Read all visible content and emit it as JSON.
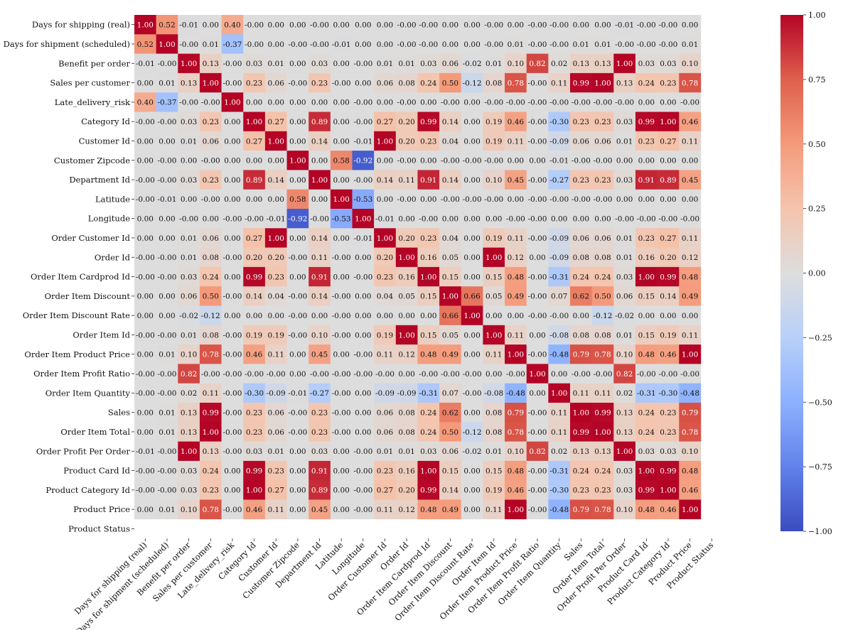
{
  "chart_data": {
    "type": "heatmap",
    "colormap": "coolwarm",
    "vmin": -1.0,
    "vmax": 1.0,
    "colorbar_ticks": [
      "1.00",
      "0.75",
      "0.50",
      "0.25",
      "0.00",
      "−0.25",
      "−0.50",
      "−0.75",
      "−1.00"
    ],
    "labels": [
      "Days for shipping (real)",
      "Days for shipment (scheduled)",
      "Benefit per order",
      "Sales per customer",
      "Late_delivery_risk",
      "Category Id",
      "Customer Id",
      "Customer Zipcode",
      "Department Id",
      "Latitude",
      "Longitude",
      "Order Customer Id",
      "Order Id",
      "Order Item Cardprod Id",
      "Order Item Discount",
      "Order Item Discount Rate",
      "Order Item Id",
      "Order Item Product Price",
      "Order Item Profit Ratio",
      "Order Item Quantity",
      "Sales",
      "Order Item Total",
      "Order Profit Per Order",
      "Product Card Id",
      "Product Category Id",
      "Product Price",
      "Product Status"
    ],
    "values": [
      [
        "1.00",
        "0.52",
        "-0.01",
        "0.00",
        "0.40",
        "-0.00",
        "0.00",
        "0.00",
        "-0.00",
        "0.00",
        "0.00",
        "0.00",
        "-0.00",
        "-0.00",
        "0.00",
        "0.00",
        "-0.00",
        "0.00",
        "-0.00",
        "-0.00",
        "0.00",
        "0.00",
        "-0.01",
        "-0.00",
        "-0.00",
        "0.00",
        null
      ],
      [
        "0.52",
        "1.00",
        "-0.00",
        "0.01",
        "-0.37",
        "-0.00",
        "0.00",
        "-0.00",
        "-0.00",
        "-0.01",
        "0.00",
        "0.00",
        "-0.00",
        "-0.00",
        "0.00",
        "0.00",
        "-0.00",
        "0.01",
        "-0.00",
        "-0.00",
        "0.01",
        "0.01",
        "-0.00",
        "-0.00",
        "-0.00",
        "0.01",
        null
      ],
      [
        "-0.01",
        "-0.00",
        "1.00",
        "0.13",
        "-0.00",
        "0.03",
        "0.01",
        "0.00",
        "0.03",
        "0.00",
        "-0.00",
        "0.01",
        "0.01",
        "0.03",
        "0.06",
        "-0.02",
        "0.01",
        "0.10",
        "0.82",
        "0.02",
        "0.13",
        "0.13",
        "1.00",
        "0.03",
        "0.03",
        "0.10",
        null
      ],
      [
        "0.00",
        "0.01",
        "0.13",
        "1.00",
        "-0.00",
        "0.23",
        "0.06",
        "-0.00",
        "0.23",
        "-0.00",
        "0.00",
        "0.06",
        "0.08",
        "0.24",
        "0.50",
        "-0.12",
        "0.08",
        "0.78",
        "-0.00",
        "0.11",
        "0.99",
        "1.00",
        "0.13",
        "0.24",
        "0.23",
        "0.78",
        null
      ],
      [
        "0.40",
        "-0.37",
        "-0.00",
        "-0.00",
        "1.00",
        "0.00",
        "0.00",
        "0.00",
        "0.00",
        "0.00",
        "-0.00",
        "0.00",
        "-0.00",
        "0.00",
        "-0.00",
        "0.00",
        "-0.00",
        "-0.00",
        "-0.00",
        "-0.00",
        "-0.00",
        "-0.00",
        "-0.00",
        "0.00",
        "0.00",
        "-0.00",
        null
      ],
      [
        "-0.00",
        "-0.00",
        "0.03",
        "0.23",
        "0.00",
        "1.00",
        "0.27",
        "0.00",
        "0.89",
        "0.00",
        "-0.00",
        "0.27",
        "0.20",
        "0.99",
        "0.14",
        "0.00",
        "0.19",
        "0.46",
        "-0.00",
        "-0.30",
        "0.23",
        "0.23",
        "0.03",
        "0.99",
        "1.00",
        "0.46",
        null
      ],
      [
        "0.00",
        "0.00",
        "0.01",
        "0.06",
        "0.00",
        "0.27",
        "1.00",
        "0.00",
        "0.14",
        "0.00",
        "-0.01",
        "1.00",
        "0.20",
        "0.23",
        "0.04",
        "0.00",
        "0.19",
        "0.11",
        "-0.00",
        "-0.09",
        "0.06",
        "0.06",
        "0.01",
        "0.23",
        "0.27",
        "0.11",
        null
      ],
      [
        "0.00",
        "-0.00",
        "0.00",
        "-0.00",
        "0.00",
        "0.00",
        "0.00",
        "1.00",
        "0.00",
        "0.58",
        "-0.92",
        "0.00",
        "-0.00",
        "0.00",
        "-0.00",
        "-0.00",
        "-0.00",
        "0.00",
        "0.00",
        "-0.01",
        "-0.00",
        "-0.00",
        "0.00",
        "0.00",
        "0.00",
        "0.00",
        null
      ],
      [
        "-0.00",
        "-0.00",
        "0.03",
        "0.23",
        "0.00",
        "0.89",
        "0.14",
        "0.00",
        "1.00",
        "0.00",
        "-0.00",
        "0.14",
        "0.11",
        "0.91",
        "0.14",
        "0.00",
        "0.10",
        "0.45",
        "-0.00",
        "-0.27",
        "0.23",
        "0.23",
        "0.03",
        "0.91",
        "0.89",
        "0.45",
        null
      ],
      [
        "-0.00",
        "-0.01",
        "0.00",
        "-0.00",
        "0.00",
        "0.00",
        "0.00",
        "0.58",
        "0.00",
        "1.00",
        "-0.53",
        "0.00",
        "-0.00",
        "0.00",
        "-0.00",
        "-0.00",
        "-0.00",
        "0.00",
        "-0.00",
        "-0.00",
        "-0.00",
        "-0.00",
        "0.00",
        "0.00",
        "0.00",
        "0.00",
        null
      ],
      [
        "0.00",
        "0.00",
        "-0.00",
        "0.00",
        "-0.00",
        "-0.00",
        "-0.01",
        "-0.92",
        "-0.00",
        "-0.53",
        "1.00",
        "-0.01",
        "0.00",
        "-0.00",
        "0.00",
        "0.00",
        "0.00",
        "-0.00",
        "-0.00",
        "0.00",
        "0.00",
        "0.00",
        "-0.00",
        "-0.00",
        "-0.00",
        "-0.00",
        null
      ],
      [
        "0.00",
        "0.00",
        "0.01",
        "0.06",
        "0.00",
        "0.27",
        "1.00",
        "0.00",
        "0.14",
        "0.00",
        "-0.01",
        "1.00",
        "0.20",
        "0.23",
        "0.04",
        "0.00",
        "0.19",
        "0.11",
        "-0.00",
        "-0.09",
        "0.06",
        "0.06",
        "0.01",
        "0.23",
        "0.27",
        "0.11",
        null
      ],
      [
        "-0.00",
        "-0.00",
        "0.01",
        "0.08",
        "-0.00",
        "0.20",
        "0.20",
        "-0.00",
        "0.11",
        "-0.00",
        "0.00",
        "0.20",
        "1.00",
        "0.16",
        "0.05",
        "0.00",
        "1.00",
        "0.12",
        "0.00",
        "-0.09",
        "0.08",
        "0.08",
        "0.01",
        "0.16",
        "0.20",
        "0.12",
        null
      ],
      [
        "-0.00",
        "-0.00",
        "0.03",
        "0.24",
        "0.00",
        "0.99",
        "0.23",
        "0.00",
        "0.91",
        "0.00",
        "-0.00",
        "0.23",
        "0.16",
        "1.00",
        "0.15",
        "0.00",
        "0.15",
        "0.48",
        "-0.00",
        "-0.31",
        "0.24",
        "0.24",
        "0.03",
        "1.00",
        "0.99",
        "0.48",
        null
      ],
      [
        "0.00",
        "0.00",
        "0.06",
        "0.50",
        "-0.00",
        "0.14",
        "0.04",
        "-0.00",
        "0.14",
        "-0.00",
        "0.00",
        "0.04",
        "0.05",
        "0.15",
        "1.00",
        "0.66",
        "0.05",
        "0.49",
        "-0.00",
        "0.07",
        "0.62",
        "0.50",
        "0.06",
        "0.15",
        "0.14",
        "0.49",
        null
      ],
      [
        "0.00",
        "0.00",
        "-0.02",
        "-0.12",
        "0.00",
        "0.00",
        "0.00",
        "-0.00",
        "0.00",
        "-0.00",
        "0.00",
        "0.00",
        "0.00",
        "0.00",
        "0.66",
        "1.00",
        "0.00",
        "0.00",
        "-0.00",
        "-0.00",
        "0.00",
        "-0.12",
        "-0.02",
        "0.00",
        "0.00",
        "0.00",
        null
      ],
      [
        "-0.00",
        "-0.00",
        "0.01",
        "0.08",
        "-0.00",
        "0.19",
        "0.19",
        "-0.00",
        "0.10",
        "-0.00",
        "0.00",
        "0.19",
        "1.00",
        "0.15",
        "0.05",
        "0.00",
        "1.00",
        "0.11",
        "0.00",
        "-0.08",
        "0.08",
        "0.08",
        "0.01",
        "0.15",
        "0.19",
        "0.11",
        null
      ],
      [
        "0.00",
        "0.01",
        "0.10",
        "0.78",
        "-0.00",
        "0.46",
        "0.11",
        "0.00",
        "0.45",
        "0.00",
        "-0.00",
        "0.11",
        "0.12",
        "0.48",
        "0.49",
        "0.00",
        "0.11",
        "1.00",
        "-0.00",
        "-0.48",
        "0.79",
        "0.78",
        "0.10",
        "0.48",
        "0.46",
        "1.00",
        null
      ],
      [
        "-0.00",
        "-0.00",
        "0.82",
        "-0.00",
        "-0.00",
        "-0.00",
        "-0.00",
        "0.00",
        "-0.00",
        "-0.00",
        "-0.00",
        "-0.00",
        "0.00",
        "-0.00",
        "-0.00",
        "-0.00",
        "0.00",
        "-0.00",
        "1.00",
        "0.00",
        "-0.00",
        "-0.00",
        "0.82",
        "-0.00",
        "-0.00",
        "-0.00",
        null
      ],
      [
        "-0.00",
        "-0.00",
        "0.02",
        "0.11",
        "-0.00",
        "-0.30",
        "-0.09",
        "-0.01",
        "-0.27",
        "-0.00",
        "0.00",
        "-0.09",
        "-0.09",
        "-0.31",
        "0.07",
        "-0.00",
        "-0.08",
        "-0.48",
        "0.00",
        "1.00",
        "0.11",
        "0.11",
        "0.02",
        "-0.31",
        "-0.30",
        "-0.48",
        null
      ],
      [
        "0.00",
        "0.01",
        "0.13",
        "0.99",
        "-0.00",
        "0.23",
        "0.06",
        "-0.00",
        "0.23",
        "-0.00",
        "0.00",
        "0.06",
        "0.08",
        "0.24",
        "0.62",
        "0.00",
        "0.08",
        "0.79",
        "-0.00",
        "0.11",
        "1.00",
        "0.99",
        "0.13",
        "0.24",
        "0.23",
        "0.79",
        null
      ],
      [
        "0.00",
        "0.01",
        "0.13",
        "1.00",
        "-0.00",
        "0.23",
        "0.06",
        "-0.00",
        "0.23",
        "-0.00",
        "0.00",
        "0.06",
        "0.08",
        "0.24",
        "0.50",
        "-0.12",
        "0.08",
        "0.78",
        "-0.00",
        "0.11",
        "0.99",
        "1.00",
        "0.13",
        "0.24",
        "0.23",
        "0.78",
        null
      ],
      [
        "-0.01",
        "-0.00",
        "1.00",
        "0.13",
        "-0.00",
        "0.03",
        "0.01",
        "0.00",
        "0.03",
        "0.00",
        "-0.00",
        "0.01",
        "0.01",
        "0.03",
        "0.06",
        "-0.02",
        "0.01",
        "0.10",
        "0.82",
        "0.02",
        "0.13",
        "0.13",
        "1.00",
        "0.03",
        "0.03",
        "0.10",
        null
      ],
      [
        "-0.00",
        "-0.00",
        "0.03",
        "0.24",
        "0.00",
        "0.99",
        "0.23",
        "0.00",
        "0.91",
        "0.00",
        "-0.00",
        "0.23",
        "0.16",
        "1.00",
        "0.15",
        "0.00",
        "0.15",
        "0.48",
        "-0.00",
        "-0.31",
        "0.24",
        "0.24",
        "0.03",
        "1.00",
        "0.99",
        "0.48",
        null
      ],
      [
        "-0.00",
        "-0.00",
        "0.03",
        "0.23",
        "0.00",
        "1.00",
        "0.27",
        "0.00",
        "0.89",
        "0.00",
        "-0.00",
        "0.27",
        "0.20",
        "0.99",
        "0.14",
        "0.00",
        "0.19",
        "0.46",
        "-0.00",
        "-0.30",
        "0.23",
        "0.23",
        "0.03",
        "0.99",
        "1.00",
        "0.46",
        null
      ],
      [
        "0.00",
        "0.01",
        "0.10",
        "0.78",
        "-0.00",
        "0.46",
        "0.11",
        "0.00",
        "0.45",
        "0.00",
        "-0.00",
        "0.11",
        "0.12",
        "0.48",
        "0.49",
        "0.00",
        "0.11",
        "1.00",
        "-0.00",
        "-0.48",
        "0.79",
        "0.78",
        "0.10",
        "0.48",
        "0.46",
        "1.00",
        null
      ],
      [
        null,
        null,
        null,
        null,
        null,
        null,
        null,
        null,
        null,
        null,
        null,
        null,
        null,
        null,
        null,
        null,
        null,
        null,
        null,
        null,
        null,
        null,
        null,
        null,
        null,
        null,
        null
      ]
    ],
    "missing_color": "#ffffff"
  }
}
